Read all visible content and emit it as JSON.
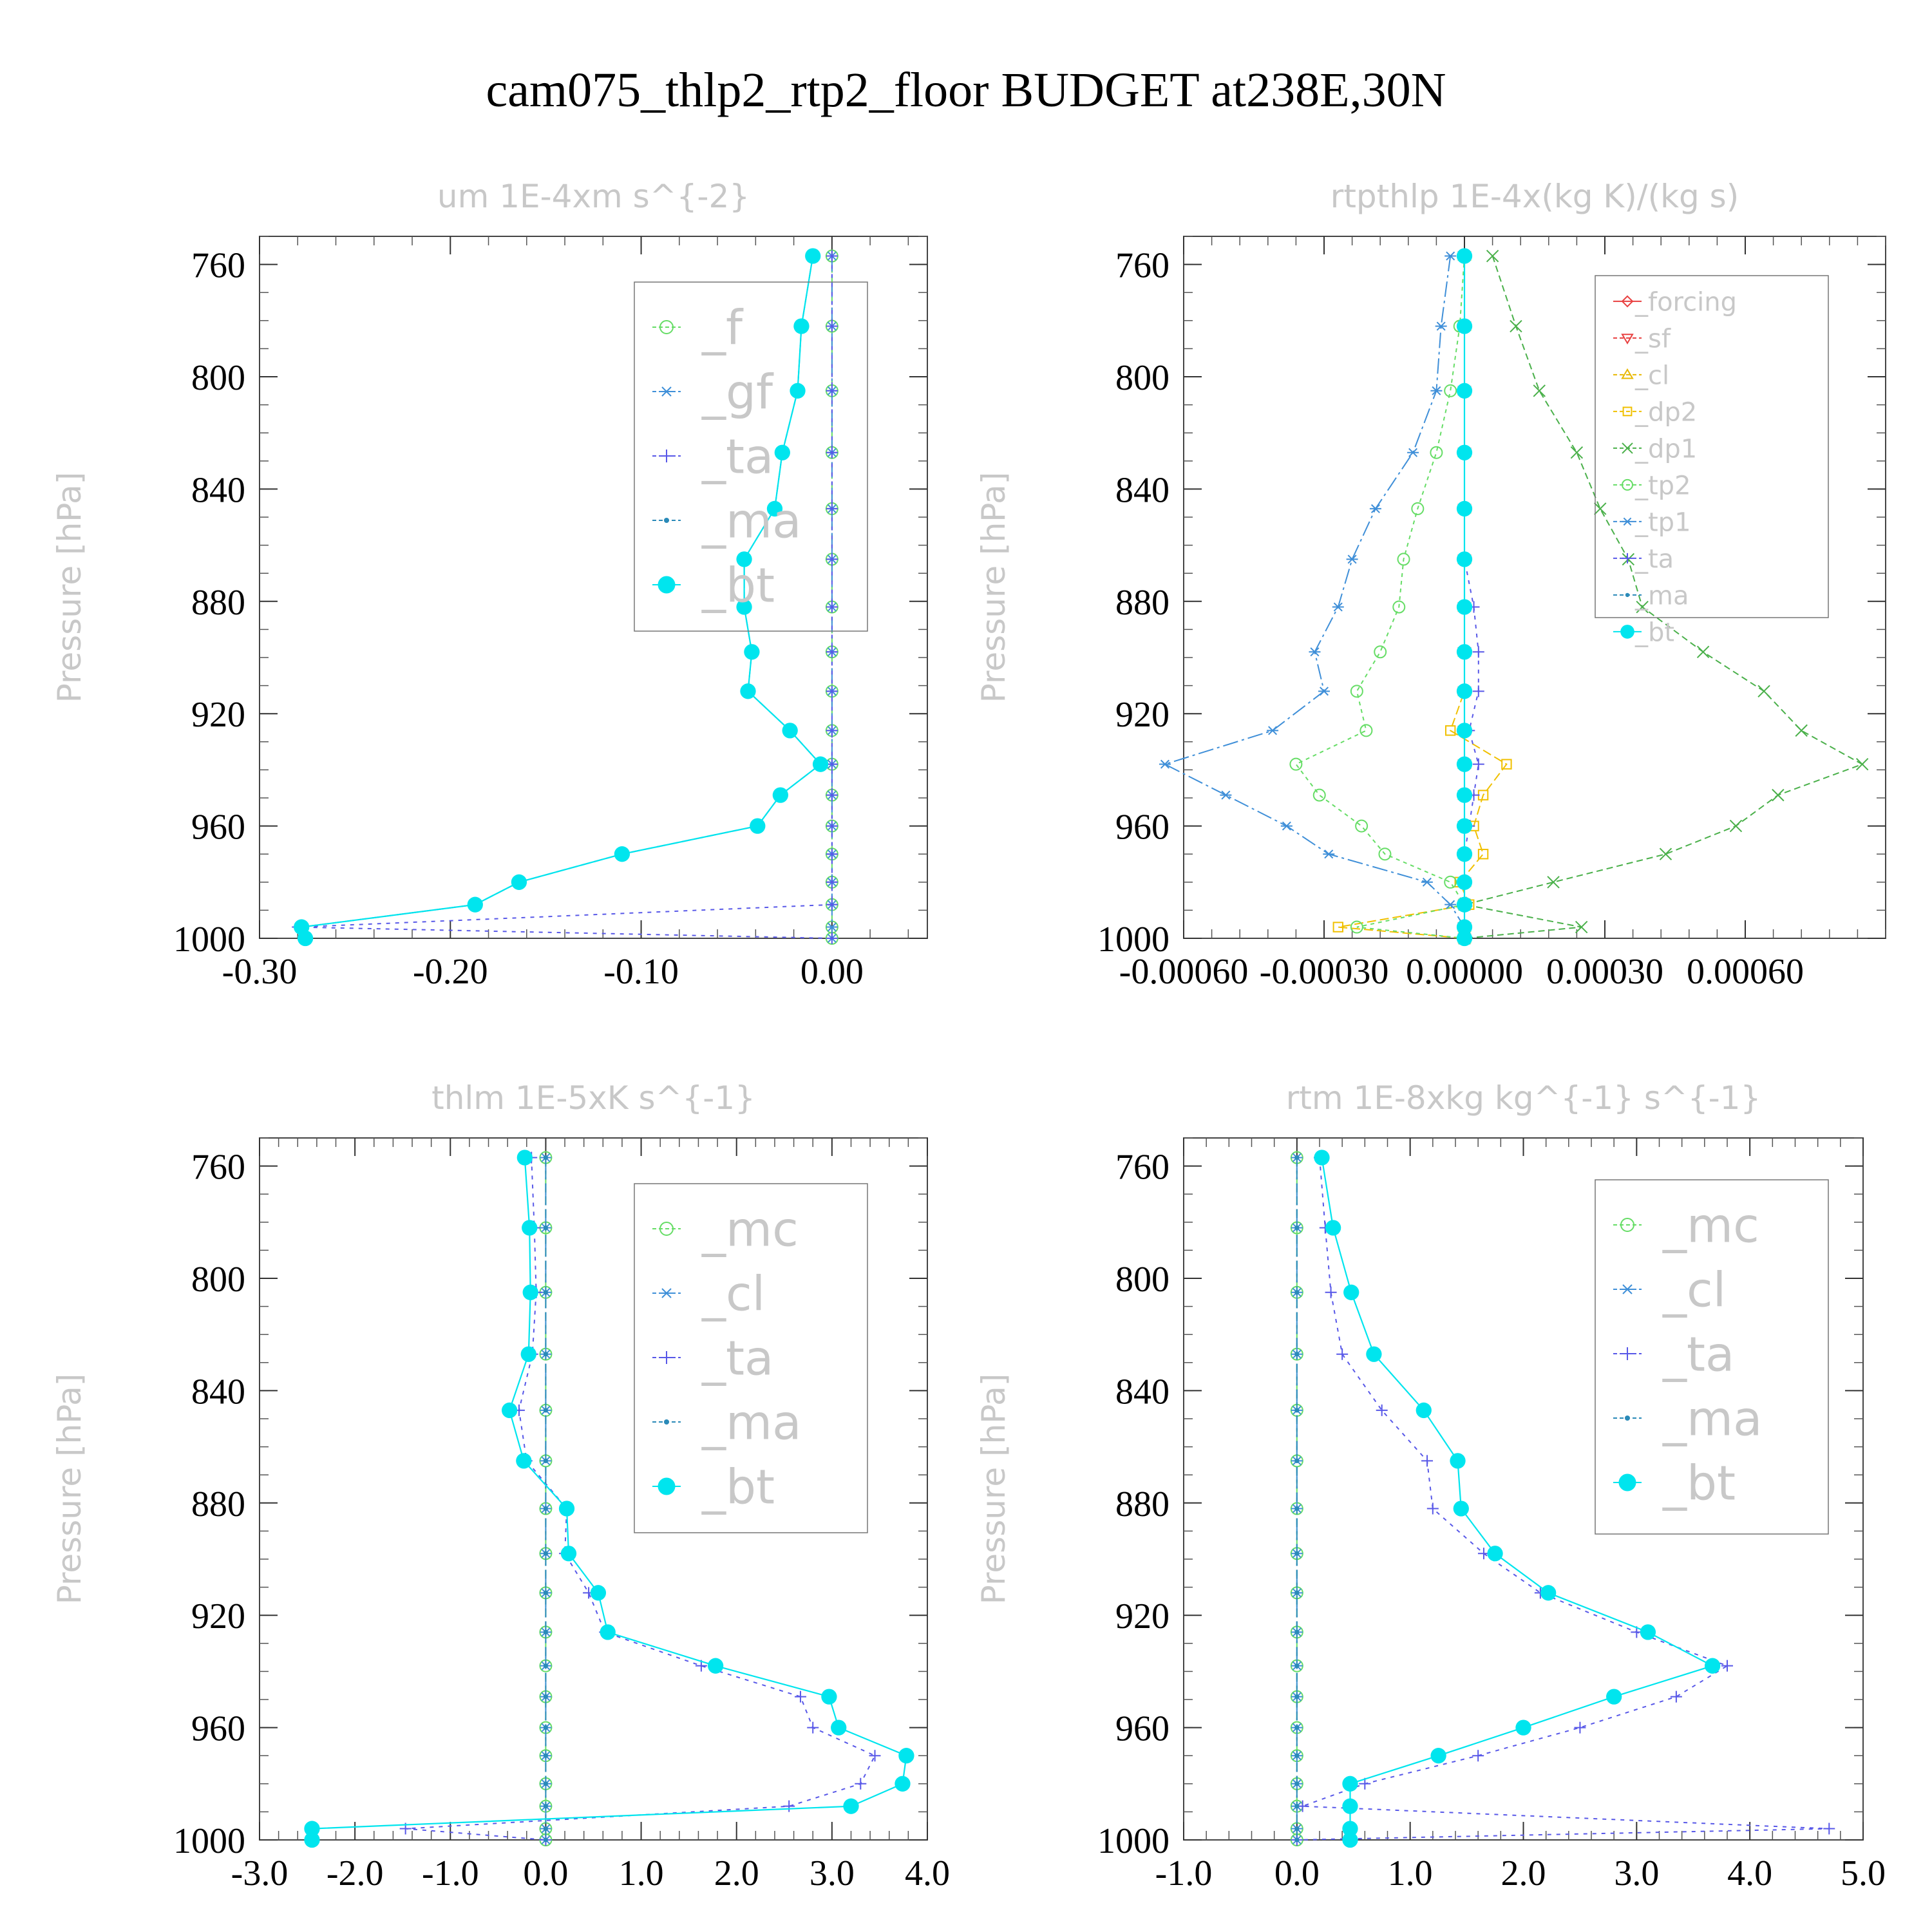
{
  "figure": {
    "title": "cam075_thlp2_rtp2_floor  BUDGET at238E,30N"
  },
  "chart_data": [
    {
      "type": "line",
      "title": "um   1E-4xm s^{-2}",
      "ylabel": "Pressure [hPa]",
      "xlim": [
        -0.3,
        0.05
      ],
      "ylim": [
        1000,
        750
      ],
      "xticks": [
        -0.3,
        -0.2,
        -0.1,
        0.0
      ],
      "xtick_labels": [
        "-0.30",
        "-0.20",
        "-0.10",
        "0.00"
      ],
      "yticks": [
        760,
        800,
        840,
        880,
        920,
        960,
        1000
      ],
      "ytick_labels": [
        "760",
        "800",
        "840",
        "880",
        "920",
        "960",
        "1000"
      ],
      "legend_position": "top-right",
      "levels": [
        757,
        782,
        805,
        827,
        847,
        865,
        882,
        898,
        912,
        926,
        938,
        949,
        960,
        970,
        980,
        988,
        996,
        1000
      ],
      "series": [
        {
          "name": "_f",
          "color": "#66dd66",
          "marker": "circle-open",
          "dash": "10,6",
          "values": [
            0,
            0,
            0,
            0,
            0,
            0,
            0,
            0,
            0,
            0,
            0,
            0,
            0,
            0,
            0,
            0,
            0,
            0
          ]
        },
        {
          "name": "_gf",
          "color": "#3f8fd8",
          "marker": "asterisk",
          "dash": "24,6,4,6",
          "values": [
            0,
            0,
            0,
            0,
            0,
            0,
            0,
            0,
            0,
            0,
            0,
            0,
            0,
            0,
            0,
            0,
            0,
            0
          ]
        },
        {
          "name": "_ta",
          "color": "#5858e8",
          "marker": "plus",
          "dash": "6,8",
          "values": [
            0,
            0,
            0,
            0,
            0,
            0,
            0,
            0,
            0,
            0,
            0,
            0,
            0,
            0,
            0,
            0,
            -0.28,
            0
          ]
        },
        {
          "name": "_ma",
          "color": "#2a8ab8",
          "marker": "dot",
          "dash": "14,6",
          "values": [
            -0.01,
            -0.016,
            -0.018,
            -0.026,
            -0.03,
            -0.046,
            -0.046,
            -0.042,
            -0.044,
            -0.022,
            -0.006,
            -0.027,
            -0.039,
            -0.11,
            -0.164,
            -0.187,
            -0.278,
            -0.276
          ]
        },
        {
          "name": "_bt",
          "color": "#00e5ee",
          "marker": "filled",
          "dash": "",
          "values": [
            -0.01,
            -0.016,
            -0.018,
            -0.026,
            -0.03,
            -0.046,
            -0.046,
            -0.042,
            -0.044,
            -0.022,
            -0.006,
            -0.027,
            -0.039,
            -0.11,
            -0.164,
            -0.187,
            -0.278,
            -0.276
          ]
        }
      ]
    },
    {
      "type": "line",
      "title": "rtpthlp   1E-4x(kg K)/(kg s)",
      "ylabel": "Pressure [hPa]",
      "xlim": [
        -0.0006,
        0.0009
      ],
      "ylim": [
        1000,
        750
      ],
      "xticks": [
        -0.0006,
        -0.0003,
        0.0,
        0.0003,
        0.0006
      ],
      "xtick_labels": [
        "-0.00060",
        "-0.00030",
        "0.00000",
        "0.00030",
        "0.00060"
      ],
      "yticks": [
        760,
        800,
        840,
        880,
        920,
        960,
        1000
      ],
      "ytick_labels": [
        "760",
        "800",
        "840",
        "880",
        "920",
        "960",
        "1000"
      ],
      "legend_position": "top-right",
      "levels": [
        757,
        782,
        805,
        827,
        847,
        865,
        882,
        898,
        912,
        926,
        938,
        949,
        960,
        970,
        980,
        988,
        996,
        1000
      ],
      "series": [
        {
          "name": "_forcing",
          "color": "#e84040",
          "marker": "diamond",
          "dash": "",
          "values": [
            0,
            0,
            0,
            0,
            0,
            0,
            0,
            0,
            0,
            0,
            0,
            0,
            0,
            0,
            0,
            0,
            0,
            0
          ]
        },
        {
          "name": "_sf",
          "color": "#e84040",
          "marker": "triangle-down",
          "dash": "10,6",
          "values": [
            0,
            0,
            0,
            0,
            0,
            0,
            0,
            0,
            0,
            0,
            0,
            0,
            0,
            0,
            0,
            0,
            0,
            0
          ]
        },
        {
          "name": "_cl",
          "color": "#e8b800",
          "marker": "triangle-up",
          "dash": "6,6",
          "values": [
            0,
            0,
            0,
            0,
            0,
            0,
            0,
            0,
            0,
            0,
            0,
            0,
            0,
            0,
            0,
            0,
            0,
            0
          ]
        },
        {
          "name": "_dp2",
          "color": "#f0c000",
          "marker": "square",
          "dash": "14,6",
          "values": [
            0,
            0,
            0,
            0,
            0,
            0,
            0,
            0,
            0,
            -3e-05,
            9e-05,
            4e-05,
            2e-05,
            4e-05,
            -1e-05,
            1e-05,
            -0.00027,
            0
          ]
        },
        {
          "name": "_dp1",
          "color": "#4ab04a",
          "marker": "cross",
          "dash": "10,6",
          "values": [
            6e-05,
            0.00011,
            0.00016,
            0.00024,
            0.00029,
            0.00035,
            0.00038,
            0.00051,
            0.00064,
            0.00072,
            0.00085,
            0.00067,
            0.00058,
            0.00043,
            0.00019,
            0,
            0.00025,
            0
          ]
        },
        {
          "name": "_tp2",
          "color": "#66dd66",
          "marker": "circle-open",
          "dash": "6,6",
          "values": [
            0,
            -1e-05,
            -3e-05,
            -6e-05,
            -0.0001,
            -0.00013,
            -0.00014,
            -0.00018,
            -0.00023,
            -0.00021,
            -0.00036,
            -0.00031,
            -0.00022,
            -0.00017,
            -3e-05,
            0,
            -0.00023,
            0
          ]
        },
        {
          "name": "_tp1",
          "color": "#3f8fd8",
          "marker": "asterisk",
          "dash": "24,6,4,6",
          "values": [
            -3e-05,
            -5e-05,
            -6e-05,
            -0.00011,
            -0.00019,
            -0.00024,
            -0.00027,
            -0.00032,
            -0.0003,
            -0.00041,
            -0.00064,
            -0.00051,
            -0.00038,
            -0.00029,
            -8e-05,
            -3e-05,
            0,
            0
          ]
        },
        {
          "name": "_ta",
          "color": "#5858e8",
          "marker": "plus",
          "dash": "6,8",
          "values": [
            0,
            0,
            0,
            0,
            0,
            0,
            2e-05,
            3e-05,
            3e-05,
            1e-05,
            3e-05,
            2e-05,
            1e-05,
            0,
            0,
            0,
            0,
            0
          ]
        },
        {
          "name": "_ma",
          "color": "#2a8ab8",
          "marker": "dot",
          "dash": "14,6",
          "values": [
            0,
            0,
            0,
            0,
            0,
            0,
            0,
            0,
            0,
            0,
            0,
            0,
            0,
            0,
            0,
            0,
            0,
            0
          ]
        },
        {
          "name": "_bt",
          "color": "#00e5ee",
          "marker": "filled",
          "dash": "",
          "values": [
            0,
            0,
            0,
            0,
            0,
            0,
            0,
            0,
            0,
            0,
            0,
            0,
            0,
            0,
            0,
            0,
            0,
            0
          ]
        }
      ]
    },
    {
      "type": "line",
      "title": "thlm   1E-5xK s^{-1}",
      "ylabel": "Pressure [hPa]",
      "xlim": [
        -3.0,
        4.0
      ],
      "ylim": [
        1000,
        750
      ],
      "xticks": [
        -3,
        -2,
        -1,
        0,
        1,
        2,
        3,
        4
      ],
      "xtick_labels": [
        "-3.0",
        "-2.0",
        "-1.0",
        "0.0",
        "1.0",
        "2.0",
        "3.0",
        "4.0"
      ],
      "yticks": [
        760,
        800,
        840,
        880,
        920,
        960,
        1000
      ],
      "ytick_labels": [
        "760",
        "800",
        "840",
        "880",
        "920",
        "960",
        "1000"
      ],
      "legend_position": "top-right",
      "levels": [
        757,
        782,
        805,
        827,
        847,
        865,
        882,
        898,
        912,
        926,
        938,
        949,
        960,
        970,
        980,
        988,
        996,
        1000
      ],
      "series": [
        {
          "name": "_mc",
          "color": "#66dd66",
          "marker": "circle-open",
          "dash": "10,6",
          "values": [
            0,
            0,
            0,
            0,
            0,
            0,
            0,
            0,
            0,
            0,
            0,
            0,
            0,
            0,
            0,
            0,
            0,
            0
          ]
        },
        {
          "name": "_cl",
          "color": "#3f8fd8",
          "marker": "asterisk",
          "dash": "24,6,4,6",
          "values": [
            0,
            0,
            0,
            0,
            0,
            0,
            0,
            0,
            0,
            0,
            0,
            0,
            0,
            0,
            0,
            0,
            0,
            0
          ]
        },
        {
          "name": "_ta",
          "color": "#5858e8",
          "marker": "plus",
          "dash": "6,8",
          "values": [
            -0.15,
            -0.12,
            -0.1,
            -0.14,
            -0.28,
            -0.2,
            0.22,
            0.2,
            0.45,
            0.62,
            1.63,
            2.67,
            2.8,
            3.45,
            3.3,
            2.55,
            -1.47,
            0
          ]
        },
        {
          "name": "_ma",
          "color": "#2a8ab8",
          "marker": "dot",
          "dash": "14,6",
          "values": [
            0,
            0,
            0,
            0,
            0,
            0,
            0,
            0,
            0,
            0,
            0,
            0,
            0,
            0,
            0,
            0,
            0,
            0
          ]
        },
        {
          "name": "_bt",
          "color": "#00e5ee",
          "marker": "filled",
          "dash": "",
          "values": [
            -0.22,
            -0.17,
            -0.16,
            -0.18,
            -0.38,
            -0.23,
            0.22,
            0.24,
            0.55,
            0.65,
            1.78,
            2.97,
            3.07,
            3.78,
            3.74,
            3.2,
            -2.45,
            -2.45
          ]
        }
      ]
    },
    {
      "type": "line",
      "title": "rtm   1E-8xkg kg^{-1} s^{-1}",
      "ylabel": "Pressure [hPa]",
      "xlim": [
        -1.0,
        5.0
      ],
      "ylim": [
        1000,
        750
      ],
      "xticks": [
        -1,
        0,
        1,
        2,
        3,
        4,
        5
      ],
      "xtick_labels": [
        "-1.0",
        "0.0",
        "1.0",
        "2.0",
        "3.0",
        "4.0",
        "5.0"
      ],
      "yticks": [
        760,
        800,
        840,
        880,
        920,
        960,
        1000
      ],
      "ytick_labels": [
        "760",
        "800",
        "840",
        "880",
        "920",
        "960",
        "1000"
      ],
      "legend_position": "top-right",
      "levels": [
        757,
        782,
        805,
        827,
        847,
        865,
        882,
        898,
        912,
        926,
        938,
        949,
        960,
        970,
        980,
        988,
        996,
        1000
      ],
      "series": [
        {
          "name": "_mc",
          "color": "#66dd66",
          "marker": "circle-open",
          "dash": "10,6",
          "values": [
            0,
            0,
            0,
            0,
            0,
            0,
            0,
            0,
            0,
            0,
            0,
            0,
            0,
            0,
            0,
            0,
            0,
            0
          ]
        },
        {
          "name": "_cl",
          "color": "#3f8fd8",
          "marker": "asterisk",
          "dash": "24,6,4,6",
          "values": [
            0,
            0,
            0,
            0,
            0,
            0,
            0,
            0,
            0,
            0,
            0,
            0,
            0,
            0,
            0,
            0,
            0,
            0
          ]
        },
        {
          "name": "_ta",
          "color": "#5858e8",
          "marker": "plus",
          "dash": "6,8",
          "values": [
            0.2,
            0.25,
            0.3,
            0.4,
            0.75,
            1.15,
            1.2,
            1.65,
            2.15,
            3.0,
            3.8,
            3.35,
            2.5,
            1.6,
            0.6,
            0.05,
            4.7,
            0
          ]
        },
        {
          "name": "_ma",
          "color": "#2a8ab8",
          "marker": "dot",
          "dash": "14,6",
          "values": [
            0,
            0,
            0,
            0,
            0,
            0,
            0,
            0,
            0,
            0,
            0,
            0,
            0,
            0,
            0,
            0,
            0,
            0
          ]
        },
        {
          "name": "_bt",
          "color": "#00e5ee",
          "marker": "filled",
          "dash": "",
          "values": [
            0.22,
            0.32,
            0.48,
            0.68,
            1.12,
            1.42,
            1.45,
            1.75,
            2.22,
            3.1,
            3.67,
            2.8,
            2.0,
            1.25,
            0.47,
            0.47,
            0.47,
            0.47
          ]
        }
      ]
    }
  ]
}
